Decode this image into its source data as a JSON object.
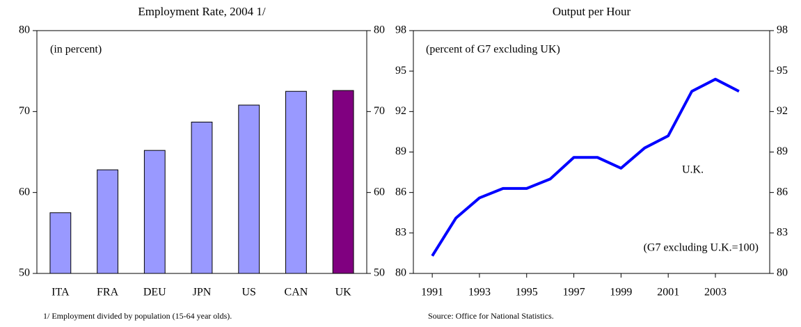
{
  "chart_data": [
    {
      "type": "bar",
      "title": "Employment Rate, 2004 1/",
      "categories": [
        "ITA",
        "FRA",
        "DEU",
        "JPN",
        "US",
        "CAN",
        "UK"
      ],
      "values": [
        57.5,
        62.8,
        65.2,
        68.7,
        70.8,
        72.5,
        72.6
      ],
      "colors": [
        "#9999ff",
        "#9999ff",
        "#9999ff",
        "#9999ff",
        "#9999ff",
        "#9999ff",
        "#800080"
      ],
      "ylim": [
        50,
        80
      ],
      "yticks": [
        50,
        60,
        70,
        80
      ],
      "y2lim": [
        50,
        80
      ],
      "y2ticks": [
        50,
        60,
        70,
        80
      ],
      "annotations": [
        "(in percent)"
      ],
      "footnote": "1/ Employment divided by population (15-64 year olds)."
    },
    {
      "type": "line",
      "title": "Output per Hour",
      "x": [
        1991,
        1992,
        1993,
        1994,
        1995,
        1996,
        1997,
        1998,
        1999,
        2000,
        2001,
        2002,
        2003,
        2004
      ],
      "series": [
        {
          "name": "U.K.",
          "color": "#0000ff",
          "values": [
            81.3,
            84.1,
            85.6,
            86.3,
            86.3,
            87.0,
            88.6,
            88.6,
            87.8,
            89.3,
            90.2,
            93.5,
            94.4,
            93.5
          ]
        }
      ],
      "xlim": [
        1990.2,
        2005.3
      ],
      "xticks": [
        1991,
        1993,
        1995,
        1997,
        1999,
        2001,
        2003
      ],
      "ylim": [
        80,
        98
      ],
      "yticks": [
        80,
        83,
        86,
        89,
        92,
        95,
        98
      ],
      "y2lim": [
        80,
        98
      ],
      "y2ticks": [
        80,
        83,
        86,
        89,
        92,
        95,
        98
      ],
      "annotations": [
        "(percent of G7 excluding UK)",
        "(G7 excluding U.K.=100)"
      ],
      "footnote": "Source: Office for National Statistics."
    }
  ]
}
